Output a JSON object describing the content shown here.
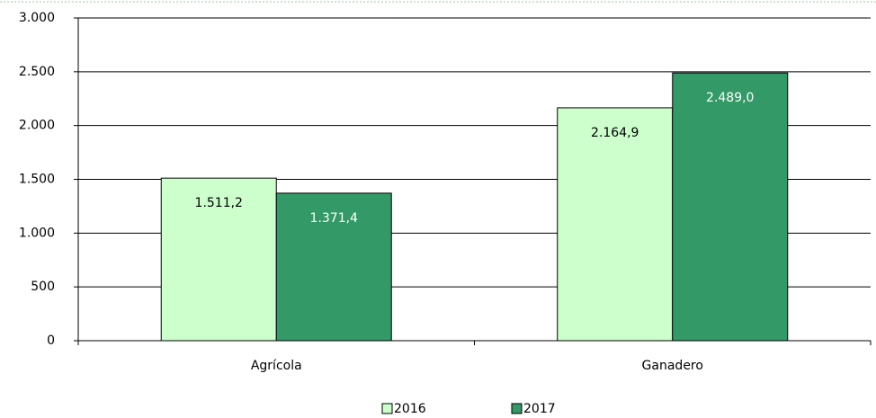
{
  "chart_data": {
    "type": "bar",
    "categories": [
      "Agrícola",
      "Ganadero"
    ],
    "series": [
      {
        "name": "2016",
        "color": "#ccffcc",
        "values": [
          1511.2,
          2164.9
        ],
        "value_labels": [
          "1.511,2",
          "2.164,9"
        ]
      },
      {
        "name": "2017",
        "color": "#339966",
        "values": [
          1371.4,
          2489.0
        ],
        "value_labels": [
          "1.371,4",
          "2.489,0"
        ]
      }
    ],
    "ylim": [
      0,
      3000
    ],
    "yticks": [
      0,
      500,
      {
        "value": 1000,
        "label": "1.000"
      },
      {
        "value": 1500,
        "label": "1.500"
      },
      {
        "value": 2000,
        "label": "2.000"
      },
      {
        "value": 2500,
        "label": "2.500"
      },
      {
        "value": 3000,
        "label": "3.000"
      }
    ],
    "grid": true,
    "legend": "bottom"
  }
}
